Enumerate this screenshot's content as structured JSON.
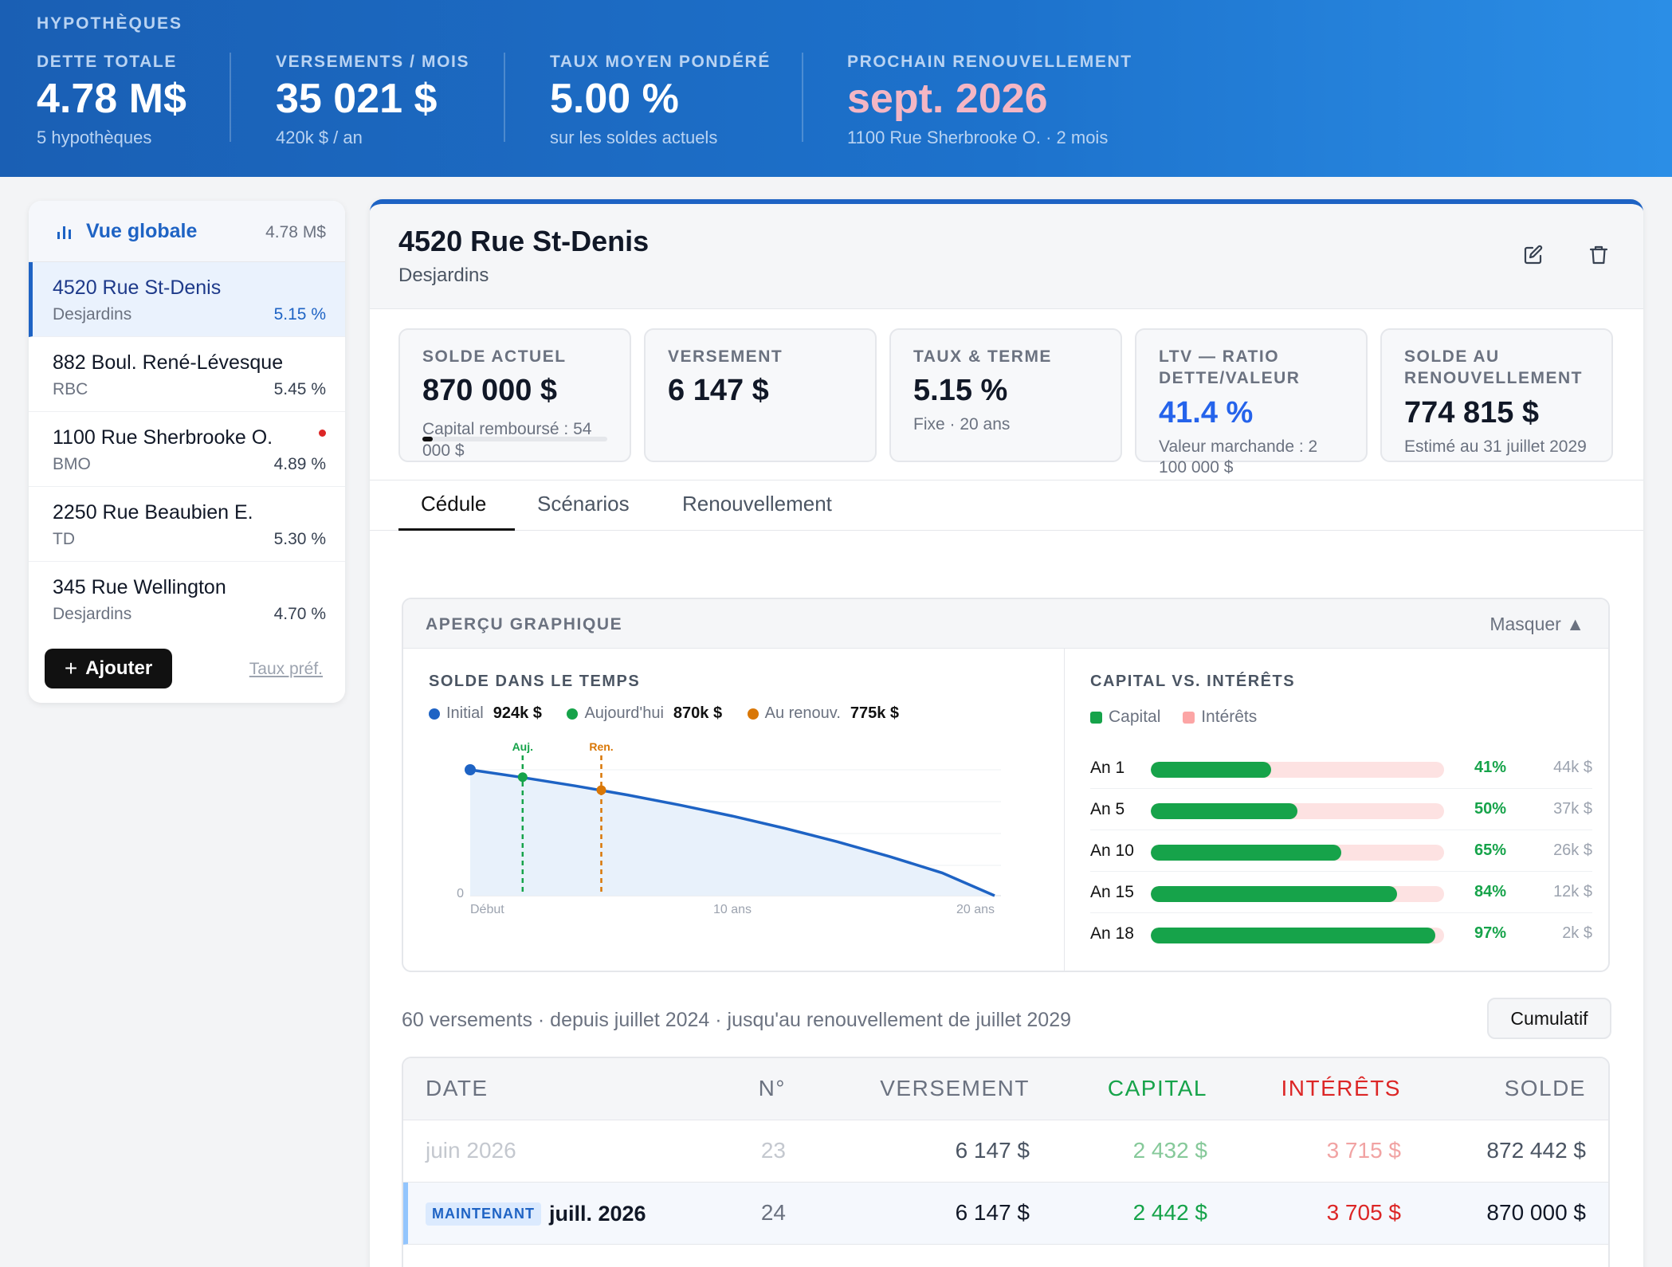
{
  "header": {
    "brand": "HYPOTHÈQUES",
    "stats": [
      {
        "label": "DETTE TOTALE",
        "value": "4.78 M$",
        "sub": "5 hypothèques"
      },
      {
        "label": "VERSEMENTS / MOIS",
        "value": "35 021 $",
        "sub": "420k $ / an"
      },
      {
        "label": "TAUX MOYEN PONDÉRÉ",
        "value": "5.00 %",
        "sub": "sur les soldes actuels"
      },
      {
        "label": "PROCHAIN RENOUVELLEMENT",
        "value": "sept. 2026",
        "sub": "1100 Rue Sherbrooke O. · 2 mois"
      }
    ]
  },
  "sidebar": {
    "overview_label": "Vue globale",
    "overview_amount": "4.78 M$",
    "items": [
      {
        "name": "4520 Rue St-Denis",
        "bank": "Desjardins",
        "rate": "5.15 %"
      },
      {
        "name": "882 Boul. René-Lévesque",
        "bank": "RBC",
        "rate": "5.45 %"
      },
      {
        "name": "1100 Rue Sherbrooke O.",
        "bank": "BMO",
        "rate": "4.89 %"
      },
      {
        "name": "2250 Rue Beaubien E.",
        "bank": "TD",
        "rate": "5.30 %"
      },
      {
        "name": "345 Rue Wellington",
        "bank": "Desjardins",
        "rate": "4.70 %"
      }
    ],
    "add_label": "Ajouter",
    "pref_link": "Taux préf."
  },
  "detail": {
    "title": "4520 Rue St-Denis",
    "bank": "Desjardins",
    "cards": [
      {
        "label": "SOLDE ACTUEL",
        "value": "870 000 $",
        "sub": "Capital remboursé : 54 000 $",
        "progress": 0.058
      },
      {
        "label": "VERSEMENT",
        "value": "6 147 $",
        "sub": ""
      },
      {
        "label": "TAUX & TERME",
        "value": "5.15 %",
        "sub": "Fixe · 20 ans"
      },
      {
        "label": "LTV — RATIO DETTE/VALEUR",
        "value": "41.4 %",
        "sub": "Valeur marchande : 2 100 000 $"
      },
      {
        "label": "SOLDE AU RENOUVELLEMENT",
        "value": "774 815 $",
        "sub": "Estimé au 31 juillet 2029"
      }
    ],
    "tabs": [
      "Cédule",
      "Scénarios",
      "Renouvellement"
    ]
  },
  "chart_section": {
    "title": "APERÇU GRAPHIQUE",
    "hide_label": "Masquer ▲"
  },
  "chart_data": [
    {
      "type": "line",
      "title": "SOLDE DANS LE TEMPS",
      "legend": [
        {
          "name": "Initial",
          "value": "924k $",
          "color": "#1e63c4"
        },
        {
          "name": "Aujourd'hui",
          "value": "870k $",
          "color": "#16a34a"
        },
        {
          "name": "Au renouv.",
          "value": "775k $",
          "color": "#d97706"
        }
      ],
      "x_ticks": [
        "Début",
        "10 ans",
        "20 ans"
      ],
      "y_tick": "0",
      "x_range": [
        0,
        20
      ],
      "y_range": [
        0,
        924000
      ],
      "x": [
        0,
        2,
        4,
        6,
        8,
        10,
        12,
        14,
        16,
        18,
        20
      ],
      "y": [
        924000,
        867000,
        806000,
        739000,
        665000,
        584000,
        494000,
        396000,
        287000,
        167000,
        0
      ],
      "markers": [
        {
          "label": "Auj.",
          "x": 2,
          "y": 870000,
          "color": "#16a34a"
        },
        {
          "label": "Ren.",
          "x": 5,
          "y": 775000,
          "color": "#d97706"
        }
      ],
      "start_color": "#1e63c4"
    },
    {
      "type": "bar",
      "title": "CAPITAL VS. INTÉRÊTS",
      "legend": [
        {
          "name": "Capital",
          "color": "#16a34a"
        },
        {
          "name": "Intérêts",
          "color": "#fca5a5"
        }
      ],
      "categories": [
        "An 1",
        "An 5",
        "An 10",
        "An 15",
        "An 18"
      ],
      "capital_pct": [
        41,
        50,
        65,
        84,
        97
      ],
      "pct_labels": [
        "41%",
        "50%",
        "65%",
        "84%",
        "97%"
      ],
      "interest": [
        "44k $",
        "37k $",
        "26k $",
        "12k $",
        "2k $"
      ]
    }
  ],
  "schedule": {
    "info": "60 versements · depuis juillet 2024 · jusqu'au renouvellement de juillet 2029",
    "cumul_label": "Cumulatif",
    "headers": {
      "date": "DATE",
      "num": "N°",
      "payment": "VERSEMENT",
      "capital": "CAPITAL",
      "interest": "INTÉRÊTS",
      "balance": "SOLDE"
    },
    "rows": [
      {
        "date": "juin 2026",
        "num": "23",
        "payment": "6 147 $",
        "capital": "2 432 $",
        "interest": "3 715 $",
        "balance": "872 442 $"
      },
      {
        "badge": "MAINTENANT",
        "date": "juill. 2026",
        "num": "24",
        "payment": "6 147 $",
        "capital": "2 442 $",
        "interest": "3 705 $",
        "balance": "870 000 $"
      }
    ]
  }
}
